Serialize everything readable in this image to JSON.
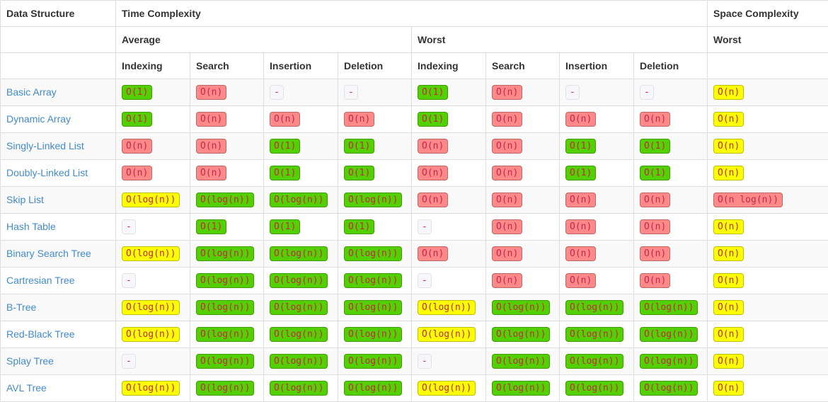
{
  "colors": {
    "link": "#428bca",
    "border": "#dddddd",
    "stripe": "#f9f9f9",
    "header-text": "#333333",
    "badge-text": "#c7254e",
    "green": "#53d000",
    "yellow": "#fdff00",
    "red": "#ff8989",
    "gray-bg": "#f7f6f9"
  },
  "table": {
    "header": {
      "data_structure": "Data Structure",
      "time_complexity": "Time Complexity",
      "space_complexity": "Space Complexity",
      "average": "Average",
      "worst": "Worst",
      "space_worst": "Worst",
      "operations": [
        "Indexing",
        "Search",
        "Insertion",
        "Deletion",
        "Indexing",
        "Search",
        "Insertion",
        "Deletion"
      ]
    },
    "rows": [
      {
        "name": "Basic Array",
        "cells": [
          {
            "text": "O(1)",
            "color": "green"
          },
          {
            "text": "O(n)",
            "color": "red"
          },
          {
            "text": "-",
            "color": "gray"
          },
          {
            "text": "-",
            "color": "gray"
          },
          {
            "text": "O(1)",
            "color": "green"
          },
          {
            "text": "O(n)",
            "color": "red"
          },
          {
            "text": "-",
            "color": "gray"
          },
          {
            "text": "-",
            "color": "gray"
          },
          {
            "text": "O(n)",
            "color": "yellow"
          }
        ]
      },
      {
        "name": "Dynamic Array",
        "cells": [
          {
            "text": "O(1)",
            "color": "green"
          },
          {
            "text": "O(n)",
            "color": "red"
          },
          {
            "text": "O(n)",
            "color": "red"
          },
          {
            "text": "O(n)",
            "color": "red"
          },
          {
            "text": "O(1)",
            "color": "green"
          },
          {
            "text": "O(n)",
            "color": "red"
          },
          {
            "text": "O(n)",
            "color": "red"
          },
          {
            "text": "O(n)",
            "color": "red"
          },
          {
            "text": "O(n)",
            "color": "yellow"
          }
        ]
      },
      {
        "name": "Singly-Linked List",
        "cells": [
          {
            "text": "O(n)",
            "color": "red"
          },
          {
            "text": "O(n)",
            "color": "red"
          },
          {
            "text": "O(1)",
            "color": "green"
          },
          {
            "text": "O(1)",
            "color": "green"
          },
          {
            "text": "O(n)",
            "color": "red"
          },
          {
            "text": "O(n)",
            "color": "red"
          },
          {
            "text": "O(1)",
            "color": "green"
          },
          {
            "text": "O(1)",
            "color": "green"
          },
          {
            "text": "O(n)",
            "color": "yellow"
          }
        ]
      },
      {
        "name": "Doubly-Linked List",
        "cells": [
          {
            "text": "O(n)",
            "color": "red"
          },
          {
            "text": "O(n)",
            "color": "red"
          },
          {
            "text": "O(1)",
            "color": "green"
          },
          {
            "text": "O(1)",
            "color": "green"
          },
          {
            "text": "O(n)",
            "color": "red"
          },
          {
            "text": "O(n)",
            "color": "red"
          },
          {
            "text": "O(1)",
            "color": "green"
          },
          {
            "text": "O(1)",
            "color": "green"
          },
          {
            "text": "O(n)",
            "color": "yellow"
          }
        ]
      },
      {
        "name": "Skip List",
        "cells": [
          {
            "text": "O(log(n))",
            "color": "yellow"
          },
          {
            "text": "O(log(n))",
            "color": "green"
          },
          {
            "text": "O(log(n))",
            "color": "green"
          },
          {
            "text": "O(log(n))",
            "color": "green"
          },
          {
            "text": "O(n)",
            "color": "red"
          },
          {
            "text": "O(n)",
            "color": "red"
          },
          {
            "text": "O(n)",
            "color": "red"
          },
          {
            "text": "O(n)",
            "color": "red"
          },
          {
            "text": "O(n log(n))",
            "color": "red"
          }
        ]
      },
      {
        "name": "Hash Table",
        "cells": [
          {
            "text": "-",
            "color": "gray"
          },
          {
            "text": "O(1)",
            "color": "green"
          },
          {
            "text": "O(1)",
            "color": "green"
          },
          {
            "text": "O(1)",
            "color": "green"
          },
          {
            "text": "-",
            "color": "gray"
          },
          {
            "text": "O(n)",
            "color": "red"
          },
          {
            "text": "O(n)",
            "color": "red"
          },
          {
            "text": "O(n)",
            "color": "red"
          },
          {
            "text": "O(n)",
            "color": "yellow"
          }
        ]
      },
      {
        "name": "Binary Search Tree",
        "cells": [
          {
            "text": "O(log(n))",
            "color": "yellow"
          },
          {
            "text": "O(log(n))",
            "color": "green"
          },
          {
            "text": "O(log(n))",
            "color": "green"
          },
          {
            "text": "O(log(n))",
            "color": "green"
          },
          {
            "text": "O(n)",
            "color": "red"
          },
          {
            "text": "O(n)",
            "color": "red"
          },
          {
            "text": "O(n)",
            "color": "red"
          },
          {
            "text": "O(n)",
            "color": "red"
          },
          {
            "text": "O(n)",
            "color": "yellow"
          }
        ]
      },
      {
        "name": "Cartresian Tree",
        "cells": [
          {
            "text": "-",
            "color": "gray"
          },
          {
            "text": "O(log(n))",
            "color": "green"
          },
          {
            "text": "O(log(n))",
            "color": "green"
          },
          {
            "text": "O(log(n))",
            "color": "green"
          },
          {
            "text": "-",
            "color": "gray"
          },
          {
            "text": "O(n)",
            "color": "red"
          },
          {
            "text": "O(n)",
            "color": "red"
          },
          {
            "text": "O(n)",
            "color": "red"
          },
          {
            "text": "O(n)",
            "color": "yellow"
          }
        ]
      },
      {
        "name": "B-Tree",
        "cells": [
          {
            "text": "O(log(n))",
            "color": "yellow"
          },
          {
            "text": "O(log(n))",
            "color": "green"
          },
          {
            "text": "O(log(n))",
            "color": "green"
          },
          {
            "text": "O(log(n))",
            "color": "green"
          },
          {
            "text": "O(log(n))",
            "color": "yellow"
          },
          {
            "text": "O(log(n))",
            "color": "green"
          },
          {
            "text": "O(log(n))",
            "color": "green"
          },
          {
            "text": "O(log(n))",
            "color": "green"
          },
          {
            "text": "O(n)",
            "color": "yellow"
          }
        ]
      },
      {
        "name": "Red-Black Tree",
        "cells": [
          {
            "text": "O(log(n))",
            "color": "yellow"
          },
          {
            "text": "O(log(n))",
            "color": "green"
          },
          {
            "text": "O(log(n))",
            "color": "green"
          },
          {
            "text": "O(log(n))",
            "color": "green"
          },
          {
            "text": "O(log(n))",
            "color": "yellow"
          },
          {
            "text": "O(log(n))",
            "color": "green"
          },
          {
            "text": "O(log(n))",
            "color": "green"
          },
          {
            "text": "O(log(n))",
            "color": "green"
          },
          {
            "text": "O(n)",
            "color": "yellow"
          }
        ]
      },
      {
        "name": "Splay Tree",
        "cells": [
          {
            "text": "-",
            "color": "gray"
          },
          {
            "text": "O(log(n))",
            "color": "green"
          },
          {
            "text": "O(log(n))",
            "color": "green"
          },
          {
            "text": "O(log(n))",
            "color": "green"
          },
          {
            "text": "-",
            "color": "gray"
          },
          {
            "text": "O(log(n))",
            "color": "green"
          },
          {
            "text": "O(log(n))",
            "color": "green"
          },
          {
            "text": "O(log(n))",
            "color": "green"
          },
          {
            "text": "O(n)",
            "color": "yellow"
          }
        ]
      },
      {
        "name": "AVL Tree",
        "cells": [
          {
            "text": "O(log(n))",
            "color": "yellow"
          },
          {
            "text": "O(log(n))",
            "color": "green"
          },
          {
            "text": "O(log(n))",
            "color": "green"
          },
          {
            "text": "O(log(n))",
            "color": "green"
          },
          {
            "text": "O(log(n))",
            "color": "yellow"
          },
          {
            "text": "O(log(n))",
            "color": "green"
          },
          {
            "text": "O(log(n))",
            "color": "green"
          },
          {
            "text": "O(log(n))",
            "color": "green"
          },
          {
            "text": "O(n)",
            "color": "yellow"
          }
        ]
      }
    ]
  }
}
